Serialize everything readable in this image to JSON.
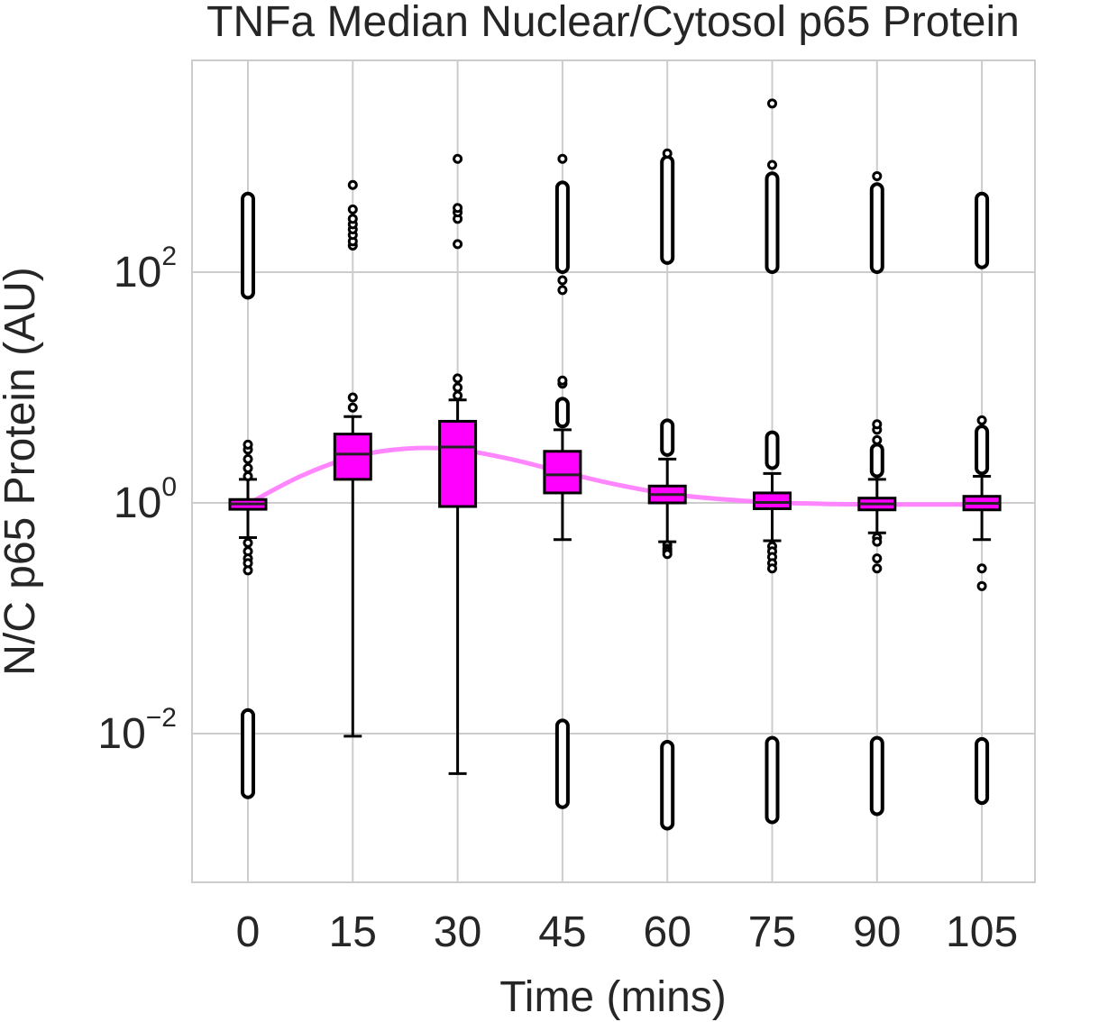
{
  "chart_data": {
    "type": "box",
    "title": "TNFa Median Nuclear/Cytosol p65 Protein",
    "xlabel": "Time (mins)",
    "ylabel": "N/C p65 Protein (AU)",
    "yscale": "log",
    "ylim": [
      0.0007,
      3000
    ],
    "grid": true,
    "categories": [
      "0",
      "15",
      "30",
      "45",
      "60",
      "75",
      "90",
      "105"
    ],
    "y_ticks": [
      {
        "base": "10",
        "exp": "2",
        "value": 100
      },
      {
        "base": "10",
        "exp": "0",
        "value": 1
      },
      {
        "base": "10",
        "exp": "−2",
        "value": 0.01
      }
    ],
    "colors": {
      "box": "#ff00ff",
      "trend": "#ff80ff",
      "edge": "#000000",
      "grid": "#cccccc"
    },
    "boxes": [
      {
        "x": "0",
        "q1": 0.88,
        "median": 0.98,
        "q3": 1.07,
        "whisker_low": 0.5,
        "whisker_high": 1.6,
        "outliers_high": [
          1.7,
          2.0,
          2.4,
          2.9,
          3.2
        ],
        "outliers_low": [
          0.45,
          0.38,
          0.33,
          0.3,
          0.26
        ],
        "clusters": [
          [
            60,
            480
          ],
          [
            0.0028,
            0.016
          ]
        ]
      },
      {
        "x": "15",
        "q1": 1.6,
        "median": 2.65,
        "q3": 3.95,
        "whisker_low": 0.0095,
        "whisker_high": 5.6,
        "outliers_high": [
          6.7,
          8.2,
          170,
          185,
          210,
          235,
          260,
          290,
          350,
          570
        ],
        "outliers_low": [],
        "clusters": []
      },
      {
        "x": "30",
        "q1": 0.93,
        "median": 3.05,
        "q3": 5.1,
        "whisker_low": 0.0045,
        "whisker_high": 7.8,
        "outliers_high": [
          8.5,
          10.0,
          12.0,
          175,
          290,
          330,
          360,
          960
        ],
        "outliers_low": [],
        "clusters": []
      },
      {
        "x": "45",
        "q1": 1.22,
        "median": 1.75,
        "q3": 2.8,
        "whisker_low": 0.48,
        "whisker_high": 4.3,
        "outliers_high": [
          10.8,
          11.5,
          70,
          85,
          960
        ],
        "outliers_low": [],
        "clusters": [
          [
            4.6,
            8.0
          ],
          [
            100,
            600
          ],
          [
            0.0023,
            0.013
          ]
        ]
      },
      {
        "x": "60",
        "q1": 1.0,
        "median": 1.18,
        "q3": 1.4,
        "whisker_low": 0.46,
        "whisker_high": 2.4,
        "outliers_high": [
          1070
        ],
        "outliers_low": [
          0.43,
          0.4,
          0.38,
          0.36
        ],
        "clusters": [
          [
            2.6,
            5.2
          ],
          [
            120,
            1000
          ],
          [
            0.0015,
            0.0085
          ]
        ]
      },
      {
        "x": "75",
        "q1": 0.89,
        "median": 1.01,
        "q3": 1.22,
        "whisker_low": 0.47,
        "whisker_high": 1.8,
        "outliers_high": [
          2900,
          850
        ],
        "outliers_low": [
          0.42,
          0.38,
          0.34,
          0.3,
          0.27
        ],
        "clusters": [
          [
            2.0,
            4.1
          ],
          [
            100,
            720
          ],
          [
            0.0017,
            0.0092
          ]
        ]
      },
      {
        "x": "90",
        "q1": 0.87,
        "median": 0.98,
        "q3": 1.1,
        "whisker_low": 0.55,
        "whisker_high": 1.6,
        "outliers_high": [
          3.5,
          4.3,
          4.8,
          680
        ],
        "outliers_low": [
          0.5,
          0.46,
          0.33,
          0.27
        ],
        "clusters": [
          [
            1.7,
            3.2
          ],
          [
            100,
            580
          ],
          [
            0.002,
            0.0092
          ]
        ]
      },
      {
        "x": "105",
        "q1": 0.87,
        "median": 0.99,
        "q3": 1.14,
        "whisker_low": 0.48,
        "whisker_high": 1.7,
        "outliers_high": [
          5.2
        ],
        "outliers_low": [
          0.27,
          0.19
        ],
        "clusters": [
          [
            1.8,
            4.6
          ],
          [
            110,
            480
          ],
          [
            0.0025,
            0.009
          ]
        ]
      }
    ],
    "trend": {
      "x": [
        0,
        7.5,
        15,
        22.5,
        30,
        37.5,
        45,
        52.5,
        60,
        67.5,
        75,
        82.5,
        90,
        97.5,
        105
      ],
      "y": [
        0.98,
        1.7,
        2.5,
        2.95,
        2.9,
        2.4,
        1.85,
        1.45,
        1.2,
        1.08,
        1.01,
        0.98,
        0.97,
        0.97,
        0.97
      ]
    }
  }
}
